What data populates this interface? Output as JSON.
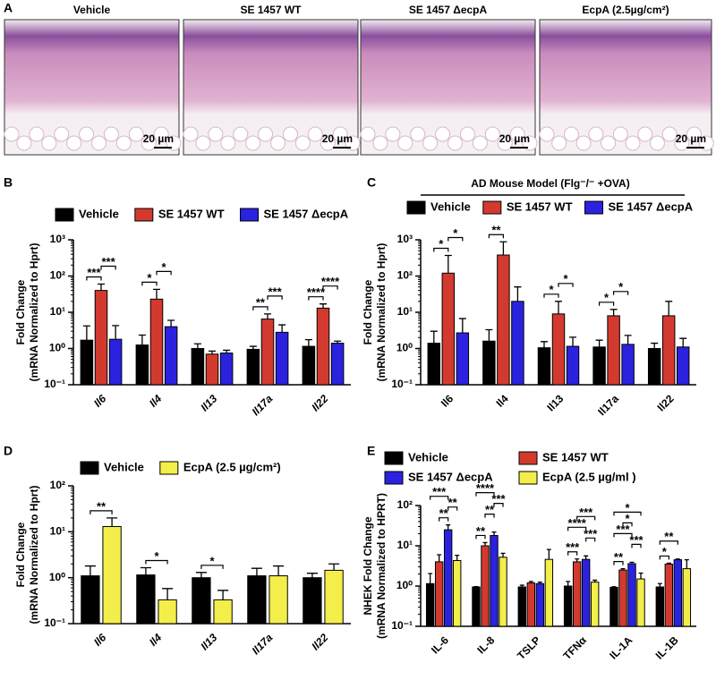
{
  "panel_a": {
    "label": "A",
    "images": [
      {
        "title": "Vehicle",
        "scale_bar": "20 µm"
      },
      {
        "title": "SE 1457 WT",
        "scale_bar": "20 µm"
      },
      {
        "title": "SE 1457 ΔecpA",
        "scale_bar": "20 µm"
      },
      {
        "title": "EcpA (2.5µg/cm²)",
        "scale_bar": "20 µm"
      }
    ]
  },
  "chart_data": [
    {
      "type": "bar",
      "panel": "B",
      "log_scale": true,
      "ylabel": [
        "Fold Change",
        "(mRNA Normalized to Hprt)"
      ],
      "categories": [
        "Il6",
        "Il4",
        "Il13",
        "Il17a",
        "Il22"
      ],
      "ylim": [
        0.1,
        1000
      ],
      "yticks": [
        {
          "value": 0.1,
          "label": "10⁻¹"
        },
        {
          "value": 1,
          "label": "10⁰"
        },
        {
          "value": 10,
          "label": "10¹"
        },
        {
          "value": 100,
          "label": "10²"
        },
        {
          "value": 1000,
          "label": "10³"
        }
      ],
      "series": [
        {
          "name": "Vehicle",
          "color": "#000000",
          "values": [
            1.7,
            1.25,
            1.0,
            0.95,
            1.15
          ],
          "errors": [
            2.5,
            1.1,
            0.35,
            0.2,
            0.6
          ]
        },
        {
          "name": "SE 1457 WT",
          "color": "#d33a2f",
          "values": [
            40,
            23,
            0.7,
            6.5,
            13
          ],
          "errors": [
            20,
            20,
            0.15,
            2.5,
            4
          ]
        },
        {
          "name": "SE 1457 ΔecpA",
          "color": "#2b22e0",
          "values": [
            1.8,
            4,
            0.75,
            2.8,
            1.4
          ],
          "errors": [
            2.5,
            2,
            0.15,
            1.7,
            0.2
          ]
        }
      ],
      "annotations": [
        {
          "at": 0,
          "pair": [
            0,
            1
          ],
          "text": "***"
        },
        {
          "at": 0,
          "pair": [
            1,
            2
          ],
          "text": "***"
        },
        {
          "at": 1,
          "pair": [
            0,
            1
          ],
          "text": "*"
        },
        {
          "at": 1,
          "pair": [
            1,
            2
          ],
          "text": "*"
        },
        {
          "at": 3,
          "pair": [
            0,
            1
          ],
          "text": "**"
        },
        {
          "at": 3,
          "pair": [
            1,
            2
          ],
          "text": "***"
        },
        {
          "at": 4,
          "pair": [
            0,
            1
          ],
          "text": "****"
        },
        {
          "at": 4,
          "pair": [
            1,
            2
          ],
          "text": "****"
        }
      ]
    },
    {
      "type": "bar",
      "panel": "C",
      "log_scale": true,
      "title": "AD Mouse Model (Flg⁻/⁻ +OVA)",
      "ylabel": [
        "Fold Change",
        "(mRNA Normalized to Hprt)"
      ],
      "categories": [
        "Il6",
        "Il4",
        "Il13",
        "Il17a",
        "Il22"
      ],
      "ylim": [
        0.1,
        1000
      ],
      "yticks": [
        {
          "value": 0.1,
          "label": "10⁻¹"
        },
        {
          "value": 1,
          "label": "10⁰"
        },
        {
          "value": 10,
          "label": "10¹"
        },
        {
          "value": 100,
          "label": "10²"
        },
        {
          "value": 1000,
          "label": "10³"
        }
      ],
      "series": [
        {
          "name": "Vehicle",
          "color": "#000000",
          "values": [
            1.4,
            1.6,
            1.05,
            1.1,
            1.0
          ],
          "errors": [
            1.6,
            1.7,
            0.5,
            0.6,
            0.4
          ]
        },
        {
          "name": "SE 1457 WT",
          "color": "#d33a2f",
          "values": [
            120,
            380,
            9,
            8,
            8
          ],
          "errors": [
            250,
            500,
            11,
            4,
            12
          ]
        },
        {
          "name": "SE 1457 ΔecpA",
          "color": "#2b22e0",
          "values": [
            2.7,
            20,
            1.15,
            1.3,
            1.1
          ],
          "errors": [
            4,
            30,
            0.9,
            1.0,
            0.8
          ]
        }
      ],
      "annotations": [
        {
          "at": 0,
          "pair": [
            0,
            1
          ],
          "text": "*"
        },
        {
          "at": 0,
          "pair": [
            1,
            2
          ],
          "text": "*"
        },
        {
          "at": 1,
          "pair": [
            0,
            1
          ],
          "text": "**"
        },
        {
          "at": 2,
          "pair": [
            0,
            1
          ],
          "text": "*"
        },
        {
          "at": 2,
          "pair": [
            1,
            2
          ],
          "text": "*"
        },
        {
          "at": 3,
          "pair": [
            0,
            1
          ],
          "text": "*"
        },
        {
          "at": 3,
          "pair": [
            1,
            2
          ],
          "text": "*"
        }
      ]
    },
    {
      "type": "bar",
      "panel": "D",
      "log_scale": true,
      "ylabel": [
        "Fold Change",
        "(mRNA Normalized to Hprt)"
      ],
      "categories": [
        "Il6",
        "Il4",
        "Il13",
        "Il17a",
        "Il22"
      ],
      "ylim": [
        0.1,
        100
      ],
      "yticks": [
        {
          "value": 0.1,
          "label": "10⁻¹"
        },
        {
          "value": 1,
          "label": "10⁰"
        },
        {
          "value": 10,
          "label": "10¹"
        },
        {
          "value": 100,
          "label": "10²"
        }
      ],
      "series": [
        {
          "name": "Vehicle",
          "color": "#000000",
          "values": [
            1.1,
            1.15,
            1.0,
            1.1,
            1.0
          ],
          "errors": [
            0.7,
            0.5,
            0.3,
            0.5,
            0.25
          ]
        },
        {
          "name": "EcpA (2.5 µg/cm²)",
          "color": "#f3ee4a",
          "values": [
            13,
            0.33,
            0.33,
            1.1,
            1.45
          ],
          "errors": [
            7,
            0.25,
            0.2,
            0.7,
            0.55
          ]
        }
      ],
      "annotations": [
        {
          "at": 0,
          "pair": [
            0,
            1
          ],
          "text": "**"
        },
        {
          "at": 1,
          "pair": [
            0,
            1
          ],
          "text": "*"
        },
        {
          "at": 2,
          "pair": [
            0,
            1
          ],
          "text": "*"
        }
      ]
    },
    {
      "type": "bar",
      "panel": "E",
      "log_scale": true,
      "ylabel": [
        "NHEK Fold Change",
        "(mRNA Normalized to HPRT)"
      ],
      "categories": [
        "IL-6",
        "IL-8",
        "TSLP",
        "TFNα",
        "IL-1A",
        "IL-1B"
      ],
      "ylim": [
        0.1,
        100
      ],
      "yticks": [
        {
          "value": 0.1,
          "label": "10⁻¹"
        },
        {
          "value": 1,
          "label": "10⁰"
        },
        {
          "value": 10,
          "label": "10¹"
        },
        {
          "value": 100,
          "label": "10²"
        }
      ],
      "series": [
        {
          "name": "Vehicle",
          "color": "#000000",
          "values": [
            1.15,
            0.95,
            0.95,
            1.0,
            0.93,
            0.95
          ],
          "errors": [
            0.9,
            0.02,
            0.1,
            0.3,
            0.03,
            0.2
          ]
        },
        {
          "name": "SE 1457 WT",
          "color": "#d33a2f",
          "values": [
            4,
            10,
            1.2,
            4,
            2.5,
            3.5
          ],
          "errors": [
            2,
            2,
            0.1,
            0.7,
            0.2,
            0.2
          ]
        },
        {
          "name": "SE 1457 ΔecpA",
          "color": "#2b22e0",
          "values": [
            25,
            18,
            1.15,
            4.6,
            3.6,
            4.5
          ],
          "errors": [
            8,
            4,
            0.1,
            1,
            0.3,
            0.2
          ]
        },
        {
          "name": "EcpA (2.5 µg/ml )",
          "color": "#f3ee4a",
          "values": [
            4.3,
            5.2,
            4.6,
            1.25,
            1.5,
            2.7
          ],
          "errors": [
            1.5,
            1.3,
            3.5,
            0.15,
            0.6,
            1.8
          ]
        }
      ],
      "annotations": [
        {
          "at": 0,
          "pair": [
            1,
            2
          ],
          "text": "**"
        },
        {
          "at": 0,
          "pair": [
            2,
            3
          ],
          "text": "**"
        },
        {
          "at": 0,
          "pair": [
            0,
            2
          ],
          "text": "***"
        },
        {
          "at": 1,
          "pair": [
            0,
            1
          ],
          "text": "**"
        },
        {
          "at": 1,
          "pair": [
            1,
            2
          ],
          "text": "**"
        },
        {
          "at": 1,
          "pair": [
            2,
            3
          ],
          "text": "***"
        },
        {
          "at": 1,
          "pair": [
            0,
            2
          ],
          "text": "****"
        },
        {
          "at": 3,
          "pair": [
            0,
            1
          ],
          "text": "***"
        },
        {
          "at": 3,
          "pair": [
            2,
            3
          ],
          "text": "***"
        },
        {
          "at": 3,
          "pair": [
            0,
            2
          ],
          "text": "****"
        },
        {
          "at": 3,
          "pair": [
            1,
            3
          ],
          "text": "***"
        },
        {
          "at": 4,
          "pair": [
            0,
            1
          ],
          "text": "**"
        },
        {
          "at": 4,
          "pair": [
            2,
            3
          ],
          "text": "***"
        },
        {
          "at": 4,
          "pair": [
            0,
            2
          ],
          "text": "***"
        },
        {
          "at": 4,
          "pair": [
            1,
            2
          ],
          "text": "*"
        },
        {
          "at": 4,
          "pair": [
            0,
            3
          ],
          "text": "*"
        },
        {
          "at": 5,
          "pair": [
            0,
            1
          ],
          "text": "*"
        },
        {
          "at": 5,
          "pair": [
            0,
            2
          ],
          "text": "**"
        }
      ]
    }
  ]
}
